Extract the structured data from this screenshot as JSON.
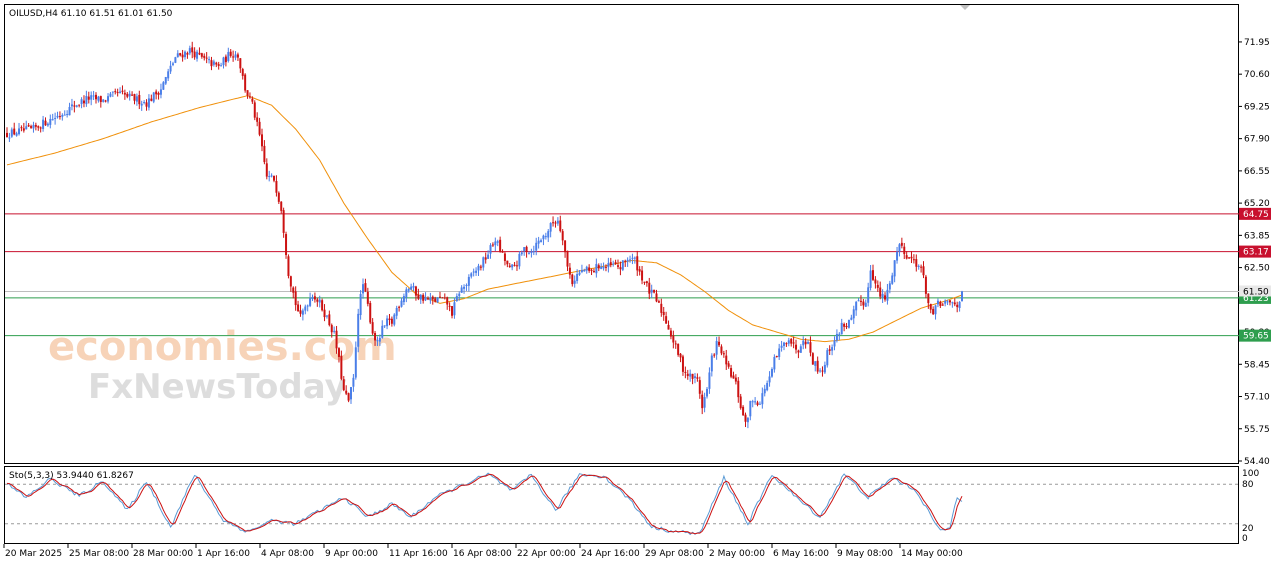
{
  "header": {
    "symbol_line": "OILUSD,H4  61.10 61.51 61.01 61.50",
    "osc_line": "Sto(5,3,3) 53.9440 61.8267"
  },
  "watermark": {
    "line1": "economies.com",
    "line2": "FxNewsToday"
  },
  "colors": {
    "bull": "#4a7ee8",
    "bear": "#cc1111",
    "ma": "#f0900a",
    "resistance": "#c8102e",
    "support": "#2e9e4e",
    "price_line": "#bdbdbd",
    "sto_main": "#5b9bd5",
    "sto_signal": "#cc1111"
  },
  "chart_data": [
    {
      "type": "candlestick",
      "symbol": "OILUSD",
      "timeframe": "H4",
      "ohlc_header": {
        "open": 61.1,
        "high": 61.51,
        "low": 61.01,
        "close": 61.5
      },
      "ylim": [
        54.4,
        72.45
      ],
      "y_ticks": [
        "71.95",
        "70.60",
        "69.25",
        "67.90",
        "66.55",
        "65.20",
        "63.85",
        "62.50",
        "61.15",
        "59.80",
        "58.45",
        "57.10",
        "55.75",
        "54.40"
      ],
      "x_ticks": [
        "20 Mar 2025",
        "25 Mar 08:00",
        "28 Mar 00:00",
        "1 Apr 16:00",
        "4 Apr 08:00",
        "9 Apr 00:00",
        "11 Apr 16:00",
        "16 Apr 08:00",
        "22 Apr 00:00",
        "24 Apr 16:00",
        "29 Apr 08:00",
        "2 May 00:00",
        "6 May 16:00",
        "9 May 08:00",
        "14 May 00:00"
      ],
      "levels": [
        {
          "value": 64.75,
          "label": "64.75",
          "kind": "resistance"
        },
        {
          "value": 63.17,
          "label": "63.17",
          "kind": "resistance"
        },
        {
          "value": 61.23,
          "label": "61.23",
          "kind": "support"
        },
        {
          "value": 59.65,
          "label": "59.65",
          "kind": "support"
        }
      ],
      "current_price": {
        "value": 61.5,
        "label": "61.50"
      },
      "close_path": [
        [
          0,
          68.1
        ],
        [
          5,
          68.2
        ],
        [
          11,
          68.3
        ],
        [
          16,
          68.6
        ],
        [
          22,
          68.9
        ],
        [
          28,
          69.3
        ],
        [
          34,
          69.6
        ],
        [
          40,
          69.5
        ],
        [
          46,
          69.8
        ],
        [
          52,
          69.6
        ],
        [
          58,
          69.4
        ],
        [
          64,
          70.0
        ],
        [
          70,
          71.3
        ],
        [
          76,
          71.6
        ],
        [
          82,
          71.2
        ],
        [
          88,
          70.9
        ],
        [
          93,
          71.5
        ],
        [
          96,
          71.4
        ],
        [
          99,
          70.0
        ],
        [
          102,
          69.3
        ],
        [
          105,
          68.0
        ],
        [
          108,
          66.3
        ],
        [
          111,
          66.2
        ],
        [
          114,
          65.0
        ],
        [
          117,
          62.3
        ],
        [
          120,
          61.0
        ],
        [
          122,
          60.4
        ],
        [
          124,
          60.9
        ],
        [
          127,
          61.4
        ],
        [
          130,
          61.0
        ],
        [
          133,
          60.4
        ],
        [
          136,
          59.7
        ],
        [
          138,
          58.6
        ],
        [
          140,
          57.3
        ],
        [
          142,
          56.9
        ],
        [
          144,
          57.8
        ],
        [
          146,
          60.7
        ],
        [
          148,
          61.8
        ],
        [
          150,
          60.9
        ],
        [
          152,
          59.8
        ],
        [
          154,
          59.3
        ],
        [
          156,
          59.9
        ],
        [
          158,
          60.2
        ],
        [
          160,
          60.2
        ],
        [
          162,
          60.8
        ],
        [
          164,
          61.2
        ],
        [
          166,
          61.6
        ],
        [
          168,
          61.7
        ],
        [
          171,
          61.3
        ],
        [
          174,
          61.2
        ],
        [
          177,
          61.1
        ],
        [
          180,
          61.2
        ],
        [
          183,
          61.0
        ],
        [
          185,
          60.6
        ],
        [
          188,
          61.5
        ],
        [
          191,
          61.8
        ],
        [
          194,
          62.3
        ],
        [
          197,
          62.6
        ],
        [
          200,
          63.1
        ],
        [
          203,
          63.7
        ],
        [
          206,
          63.0
        ],
        [
          209,
          62.4
        ],
        [
          212,
          62.7
        ],
        [
          215,
          63.3
        ],
        [
          218,
          63.2
        ],
        [
          221,
          63.6
        ],
        [
          224,
          63.9
        ],
        [
          227,
          64.4
        ],
        [
          229,
          64.5
        ],
        [
          231,
          63.8
        ],
        [
          233,
          62.5
        ],
        [
          235,
          61.9
        ],
        [
          237,
          62.2
        ],
        [
          240,
          62.4
        ],
        [
          243,
          62.3
        ],
        [
          246,
          62.6
        ],
        [
          249,
          62.5
        ],
        [
          252,
          62.6
        ],
        [
          255,
          62.5
        ],
        [
          258,
          62.9
        ],
        [
          261,
          62.8
        ],
        [
          263,
          62.3
        ],
        [
          265,
          61.9
        ],
        [
          267,
          61.5
        ],
        [
          269,
          61.3
        ],
        [
          271,
          60.9
        ],
        [
          273,
          60.5
        ],
        [
          275,
          60.0
        ],
        [
          277,
          59.4
        ],
        [
          279,
          58.9
        ],
        [
          281,
          58.3
        ],
        [
          283,
          58.0
        ],
        [
          285,
          57.9
        ],
        [
          287,
          57.8
        ],
        [
          289,
          56.7
        ],
        [
          291,
          57.4
        ],
        [
          293,
          58.7
        ],
        [
          295,
          59.3
        ],
        [
          297,
          59.0
        ],
        [
          299,
          58.4
        ],
        [
          301,
          58.0
        ],
        [
          303,
          57.6
        ],
        [
          305,
          56.7
        ],
        [
          307,
          55.9
        ],
        [
          309,
          56.8
        ],
        [
          311,
          57.0
        ],
        [
          313,
          56.8
        ],
        [
          315,
          57.5
        ],
        [
          317,
          57.8
        ],
        [
          319,
          58.6
        ],
        [
          321,
          59.0
        ],
        [
          323,
          59.3
        ],
        [
          325,
          59.6
        ],
        [
          327,
          59.2
        ],
        [
          329,
          59.1
        ],
        [
          331,
          59.6
        ],
        [
          333,
          59.3
        ],
        [
          335,
          58.6
        ],
        [
          337,
          58.3
        ],
        [
          339,
          58.2
        ],
        [
          341,
          58.9
        ],
        [
          343,
          59.3
        ],
        [
          345,
          59.6
        ],
        [
          347,
          60.1
        ],
        [
          349,
          60.1
        ],
        [
          351,
          60.3
        ],
        [
          353,
          60.9
        ],
        [
          355,
          61.1
        ],
        [
          357,
          61.0
        ],
        [
          359,
          62.5
        ],
        [
          361,
          61.8
        ],
        [
          363,
          61.3
        ],
        [
          365,
          61.2
        ],
        [
          367,
          61.8
        ],
        [
          369,
          62.8
        ],
        [
          371,
          63.5
        ],
        [
          373,
          63.2
        ],
        [
          375,
          62.9
        ],
        [
          377,
          62.8
        ],
        [
          379,
          62.6
        ],
        [
          381,
          62.1
        ],
        [
          383,
          61.0
        ],
        [
          385,
          60.4
        ],
        [
          387,
          61.1
        ],
        [
          389,
          60.9
        ],
        [
          391,
          61.0
        ],
        [
          393,
          61.0
        ],
        [
          395,
          60.9
        ],
        [
          397,
          61.5
        ]
      ],
      "ma_path": [
        [
          0,
          66.8
        ],
        [
          20,
          67.3
        ],
        [
          40,
          67.9
        ],
        [
          60,
          68.6
        ],
        [
          80,
          69.2
        ],
        [
          100,
          69.7
        ],
        [
          110,
          69.3
        ],
        [
          120,
          68.3
        ],
        [
          130,
          67.0
        ],
        [
          140,
          65.2
        ],
        [
          150,
          63.7
        ],
        [
          160,
          62.3
        ],
        [
          170,
          61.4
        ],
        [
          180,
          61.0
        ],
        [
          190,
          61.2
        ],
        [
          200,
          61.6
        ],
        [
          210,
          61.8
        ],
        [
          220,
          62.0
        ],
        [
          230,
          62.2
        ],
        [
          240,
          62.4
        ],
        [
          250,
          62.6
        ],
        [
          260,
          62.8
        ],
        [
          270,
          62.7
        ],
        [
          280,
          62.2
        ],
        [
          290,
          61.5
        ],
        [
          300,
          60.7
        ],
        [
          310,
          60.1
        ],
        [
          320,
          59.8
        ],
        [
          330,
          59.5
        ],
        [
          340,
          59.4
        ],
        [
          350,
          59.5
        ],
        [
          360,
          59.8
        ],
        [
          370,
          60.3
        ],
        [
          380,
          60.8
        ],
        [
          390,
          61.1
        ],
        [
          397,
          61.35
        ]
      ],
      "bars_count": 398
    },
    {
      "type": "line",
      "name": "Sto(5,3,3)",
      "ylim": [
        0,
        100
      ],
      "y_ticks": [
        "100",
        "80",
        "20",
        "0"
      ],
      "levels": [
        80,
        20
      ],
      "main_value": 53.944,
      "signal_value": 61.8267,
      "oscillation_turns": [
        [
          0,
          80
        ],
        [
          8,
          60
        ],
        [
          18,
          88
        ],
        [
          30,
          62
        ],
        [
          40,
          85
        ],
        [
          50,
          40
        ],
        [
          58,
          85
        ],
        [
          68,
          15
        ],
        [
          78,
          95
        ],
        [
          90,
          25
        ],
        [
          100,
          8
        ],
        [
          110,
          25
        ],
        [
          120,
          20
        ],
        [
          130,
          40
        ],
        [
          140,
          60
        ],
        [
          150,
          30
        ],
        [
          160,
          50
        ],
        [
          168,
          30
        ],
        [
          178,
          60
        ],
        [
          190,
          80
        ],
        [
          200,
          95
        ],
        [
          210,
          70
        ],
        [
          218,
          94
        ],
        [
          228,
          40
        ],
        [
          238,
          95
        ],
        [
          248,
          92
        ],
        [
          258,
          60
        ],
        [
          268,
          15
        ],
        [
          278,
          8
        ],
        [
          288,
          5
        ],
        [
          298,
          90
        ],
        [
          308,
          20
        ],
        [
          318,
          95
        ],
        [
          328,
          60
        ],
        [
          338,
          30
        ],
        [
          348,
          95
        ],
        [
          358,
          60
        ],
        [
          368,
          90
        ],
        [
          378,
          70
        ],
        [
          388,
          8
        ],
        [
          392,
          15
        ],
        [
          395,
          62
        ],
        [
          397,
          55
        ]
      ]
    }
  ]
}
